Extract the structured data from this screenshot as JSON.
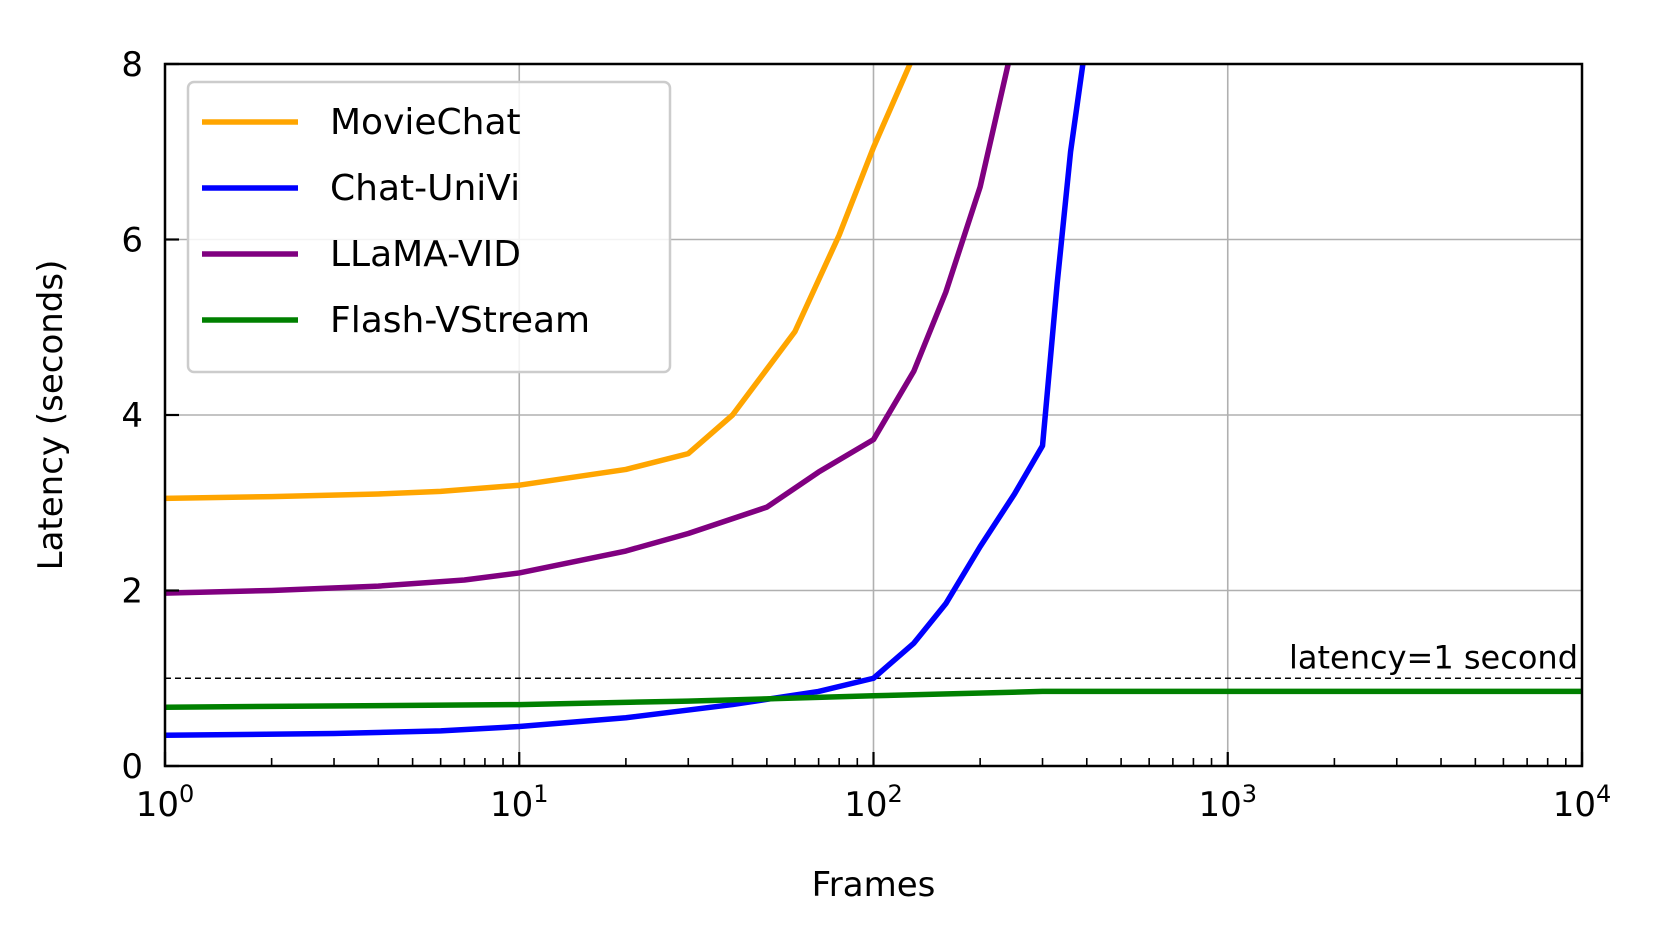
{
  "chart_data": {
    "type": "line",
    "xlabel": "Frames",
    "ylabel": "Latency (seconds)",
    "x_scale": "log",
    "xlim": [
      1,
      10000
    ],
    "ylim": [
      0,
      8
    ],
    "x_ticks": [
      {
        "value": 1,
        "base": "10",
        "exp": "0"
      },
      {
        "value": 10,
        "base": "10",
        "exp": "1"
      },
      {
        "value": 100,
        "base": "10",
        "exp": "2"
      },
      {
        "value": 1000,
        "base": "10",
        "exp": "3"
      },
      {
        "value": 10000,
        "base": "10",
        "exp": "4"
      }
    ],
    "y_ticks": [
      0,
      2,
      4,
      6,
      8
    ],
    "grid": true,
    "legend_position": "top-left",
    "series": [
      {
        "name": "MovieChat",
        "color": "#FFA500",
        "points": [
          [
            1,
            3.05
          ],
          [
            2,
            3.07
          ],
          [
            4,
            3.1
          ],
          [
            6,
            3.13
          ],
          [
            10,
            3.2
          ],
          [
            20,
            3.38
          ],
          [
            30,
            3.56
          ],
          [
            40,
            4.0
          ],
          [
            60,
            4.95
          ],
          [
            80,
            6.05
          ],
          [
            100,
            7.05
          ],
          [
            130,
            8.1
          ]
        ]
      },
      {
        "name": "Chat-UniVi",
        "color": "#0000FF",
        "points": [
          [
            1,
            0.35
          ],
          [
            3,
            0.37
          ],
          [
            6,
            0.4
          ],
          [
            10,
            0.45
          ],
          [
            20,
            0.55
          ],
          [
            40,
            0.7
          ],
          [
            70,
            0.85
          ],
          [
            100,
            1.0
          ],
          [
            130,
            1.4
          ],
          [
            160,
            1.85
          ],
          [
            200,
            2.5
          ],
          [
            250,
            3.1
          ],
          [
            300,
            3.65
          ],
          [
            330,
            5.5
          ],
          [
            360,
            7.0
          ],
          [
            390,
            8.0
          ]
        ]
      },
      {
        "name": "LLaMA-VID",
        "color": "#800080",
        "points": [
          [
            1,
            1.97
          ],
          [
            2,
            2.0
          ],
          [
            4,
            2.05
          ],
          [
            7,
            2.12
          ],
          [
            10,
            2.2
          ],
          [
            20,
            2.45
          ],
          [
            30,
            2.65
          ],
          [
            50,
            2.95
          ],
          [
            70,
            3.35
          ],
          [
            100,
            3.72
          ],
          [
            130,
            4.5
          ],
          [
            160,
            5.4
          ],
          [
            200,
            6.6
          ],
          [
            240,
            8.0
          ]
        ]
      },
      {
        "name": "Flash-VStream",
        "color": "#008000",
        "points": [
          [
            1,
            0.67
          ],
          [
            10,
            0.7
          ],
          [
            30,
            0.74
          ],
          [
            100,
            0.8
          ],
          [
            300,
            0.85
          ],
          [
            1000,
            0.85
          ],
          [
            10000,
            0.85
          ]
        ]
      }
    ],
    "reference_line": {
      "y": 1,
      "style": "dashed",
      "color": "#000000",
      "label": "latency=1 second"
    }
  }
}
